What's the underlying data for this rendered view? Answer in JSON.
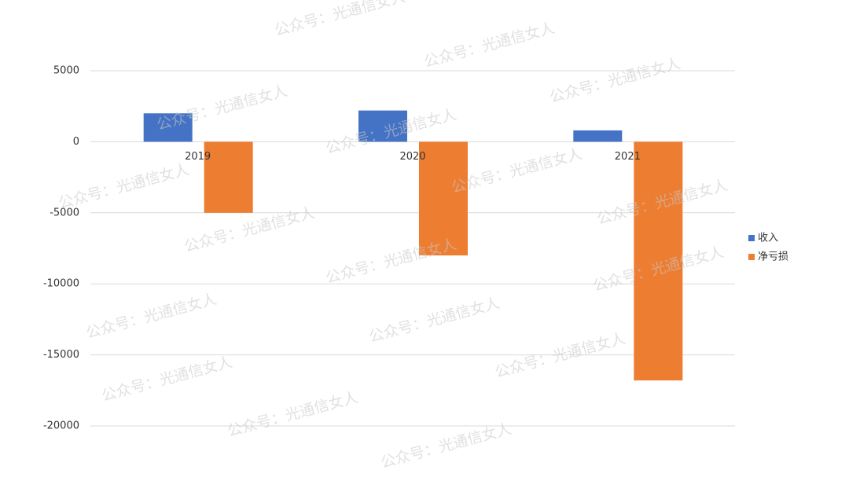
{
  "chart_data": {
    "type": "bar",
    "categories": [
      "2019",
      "2020",
      "2021"
    ],
    "series": [
      {
        "name": "收入",
        "color": "#4472c4",
        "values": [
          2000,
          2200,
          800
        ]
      },
      {
        "name": "净亏损",
        "color": "#ed7d31",
        "values": [
          -5000,
          -8000,
          -16800
        ]
      }
    ],
    "ylim": [
      -20000,
      5000
    ],
    "yticks": [
      -20000,
      -15000,
      -10000,
      -5000,
      0,
      5000
    ],
    "grid": true,
    "legend": "right",
    "watermark": "公众号：光通信女人"
  }
}
